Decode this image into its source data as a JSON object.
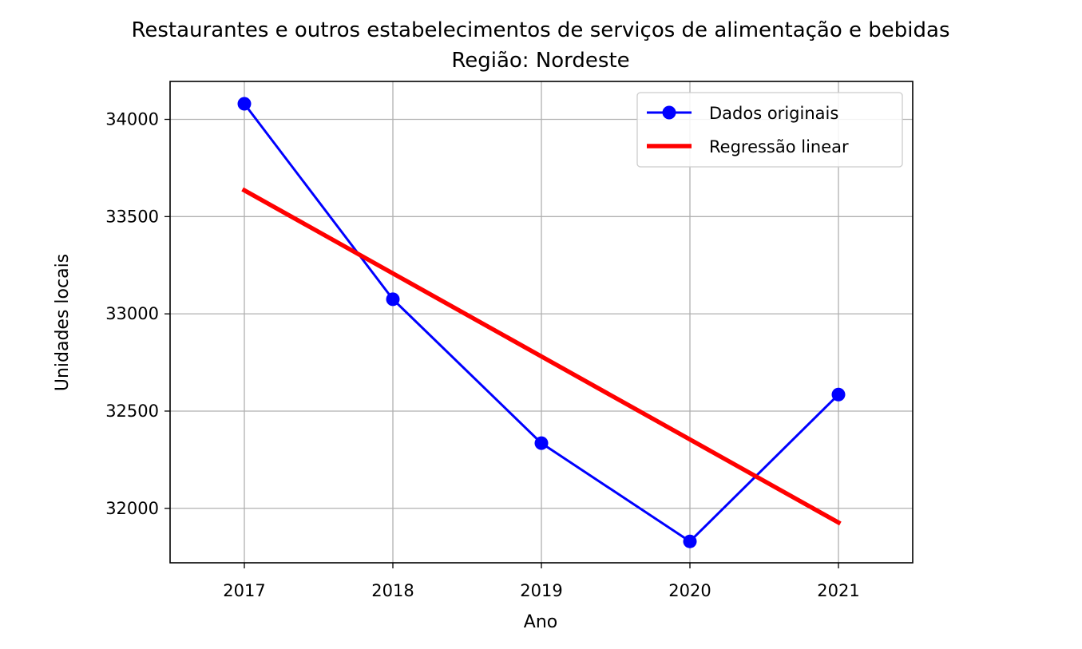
{
  "chart_data": {
    "type": "line",
    "title": "Restaurantes e outros estabelecimentos de serviços de alimentação e bebidas",
    "subtitle": "Região: Nordeste",
    "xlabel": "Ano",
    "ylabel": "Unidades locais",
    "x": [
      2017,
      2018,
      2019,
      2020,
      2021
    ],
    "xlim": [
      2016.5,
      2021.5
    ],
    "ylim": [
      31720,
      34195
    ],
    "x_ticks": [
      "2017",
      "2018",
      "2019",
      "2020",
      "2021"
    ],
    "y_ticks": [
      32000,
      32500,
      33000,
      33500,
      34000
    ],
    "y_tick_labels": [
      "32000",
      "32500",
      "33000",
      "33500",
      "34000"
    ],
    "grid": true,
    "legend_position": "upper right",
    "series": [
      {
        "name": "Dados originais",
        "kind": "line-marker",
        "color": "#0000ff",
        "values": [
          34080,
          33075,
          32335,
          31830,
          32585
        ]
      },
      {
        "name": "Regressão linear",
        "kind": "line",
        "color": "#ff0000",
        "values": [
          33635,
          33208,
          32781,
          32354,
          31927
        ]
      }
    ]
  }
}
